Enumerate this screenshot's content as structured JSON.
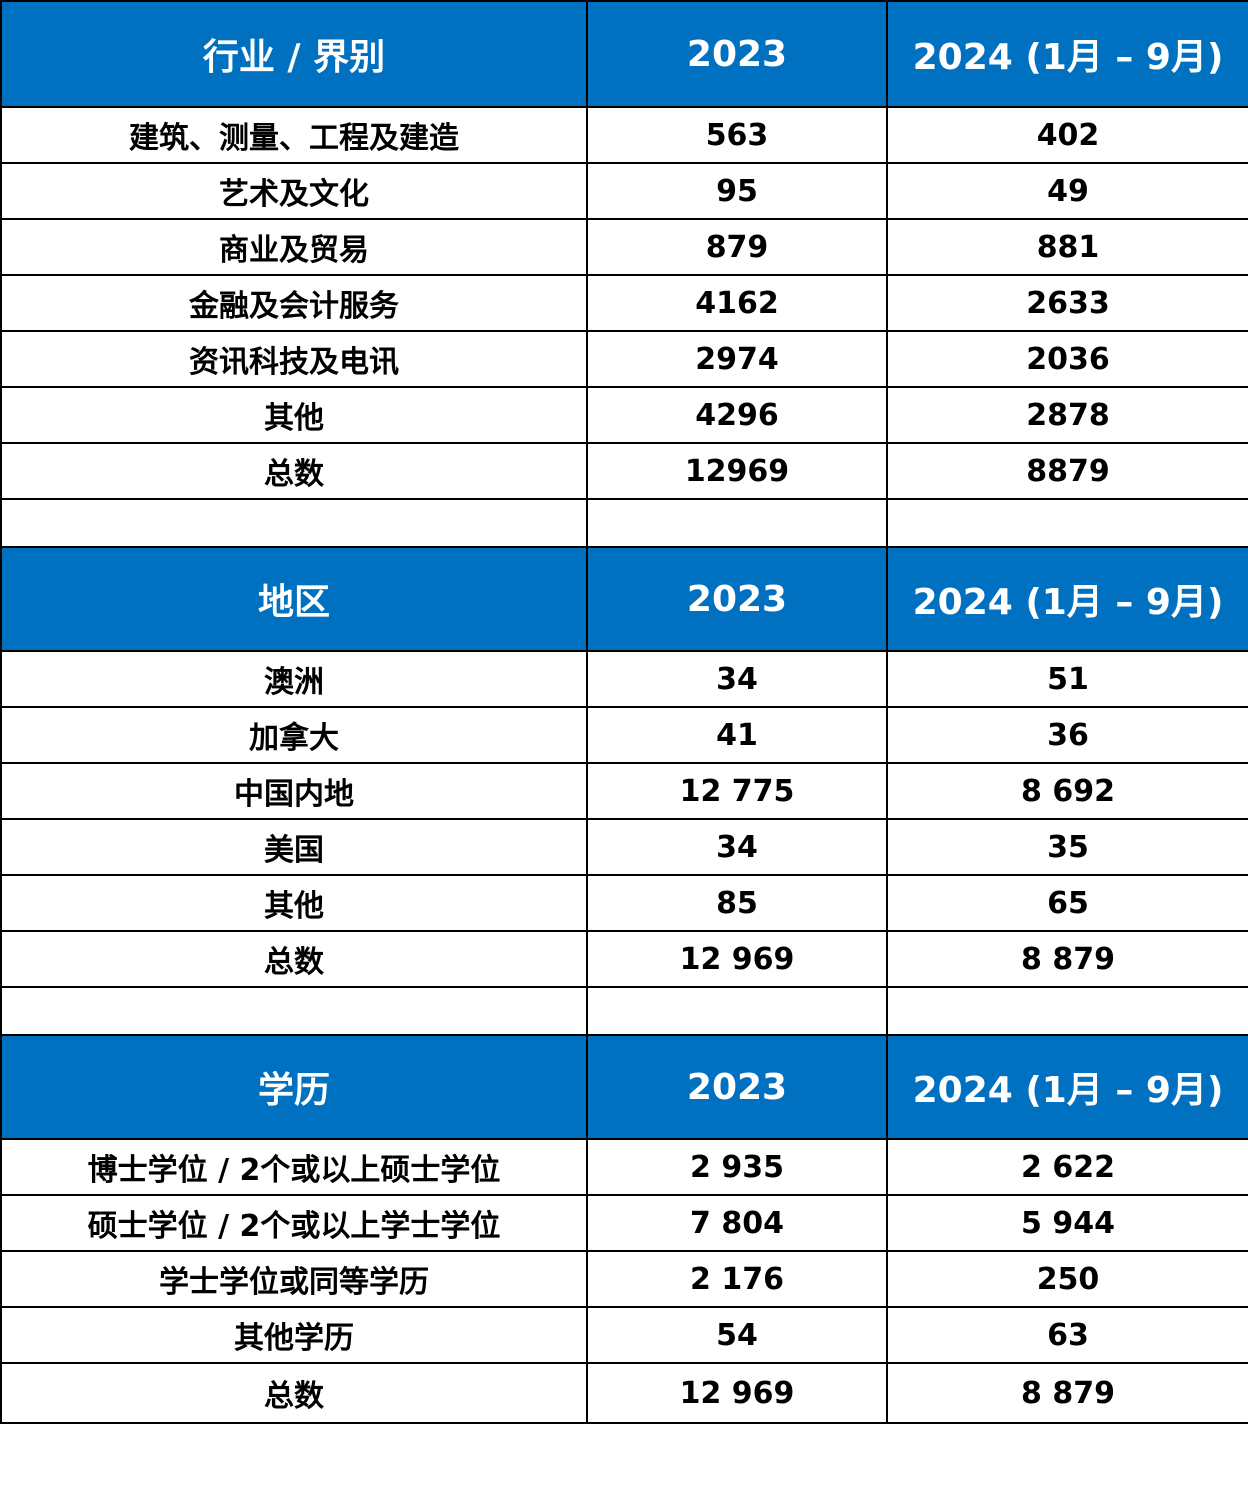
{
  "colors": {
    "header_bg": "#0070c0",
    "header_text": "#ffffff",
    "border": "#000000"
  },
  "industry": {
    "header": {
      "label": "行业 / 界别",
      "col1": "2023",
      "col2": "2024 (1月 – 9月)"
    },
    "rows": [
      {
        "label": "建筑、测量、工程及建造",
        "v2023": "563",
        "v2024": "402"
      },
      {
        "label": "艺术及文化",
        "v2023": "95",
        "v2024": "49"
      },
      {
        "label": "商业及贸易",
        "v2023": "879",
        "v2024": "881"
      },
      {
        "label": "金融及会计服务",
        "v2023": "4162",
        "v2024": "2633"
      },
      {
        "label": "资讯科技及电讯",
        "v2023": "2974",
        "v2024": "2036"
      },
      {
        "label": "其他",
        "v2023": "4296",
        "v2024": "2878"
      },
      {
        "label": "总数",
        "v2023": "12969",
        "v2024": "8879"
      }
    ]
  },
  "region": {
    "header": {
      "label": "地区",
      "col1": "2023",
      "col2": "2024 (1月 – 9月)"
    },
    "rows": [
      {
        "label": "澳洲",
        "v2023": "34",
        "v2024": "51"
      },
      {
        "label": "加拿大",
        "v2023": "41",
        "v2024": "36"
      },
      {
        "label": "中国内地",
        "v2023": "12 775",
        "v2024": "8 692"
      },
      {
        "label": "美国",
        "v2023": "34",
        "v2024": "35"
      },
      {
        "label": "其他",
        "v2023": "85",
        "v2024": "65"
      },
      {
        "label": "总数",
        "v2023": "12 969",
        "v2024": "8 879"
      }
    ]
  },
  "education": {
    "header": {
      "label": "学历",
      "col1": "2023",
      "col2": "2024 (1月 – 9月)"
    },
    "rows": [
      {
        "label": "博士学位 / 2个或以上硕士学位",
        "v2023": "2 935",
        "v2024": "2 622"
      },
      {
        "label": "硕士学位 / 2个或以上学士学位",
        "v2023": "7 804",
        "v2024": "5 944"
      },
      {
        "label": "学士学位或同等学历",
        "v2023": "2 176",
        "v2024": "250"
      },
      {
        "label": "其他学历",
        "v2023": "54",
        "v2024": "63"
      },
      {
        "label": "总数",
        "v2023": "12 969",
        "v2024": "8 879"
      }
    ]
  }
}
